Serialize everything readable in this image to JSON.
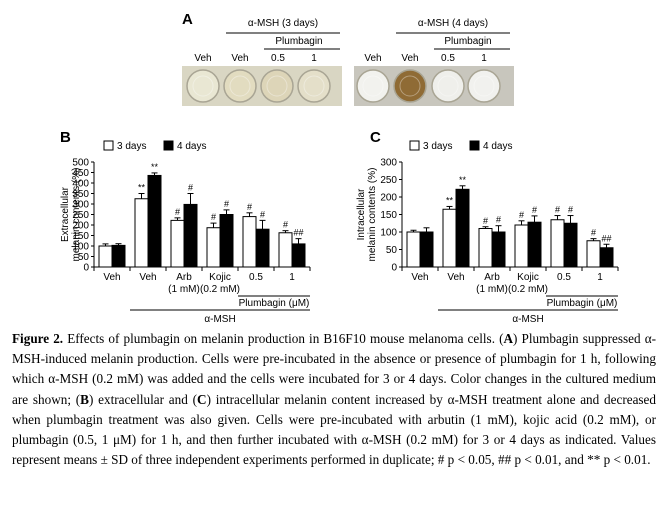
{
  "panel_a": {
    "label": "A",
    "group3_title": "α-MSH (3 days)",
    "group4_title": "α-MSH (4 days)",
    "plumbagin_label": "Plumbagin",
    "well_labels_3": [
      "Veh",
      "Veh",
      "0.5",
      "1"
    ],
    "well_labels_4": [
      "Veh",
      "Veh",
      "0.5",
      "1"
    ],
    "well_colors_3": [
      "#e9e7d3",
      "#e2dcc0",
      "#ddd5b8",
      "#e4dfc9"
    ],
    "well_colors_4": [
      "#f2f2ee",
      "#8f6b35",
      "#efefeb",
      "#f1f1ee"
    ]
  },
  "chart_data": [
    {
      "panel": "B",
      "type": "bar",
      "legend": [
        "3 days",
        "4 days"
      ],
      "legend_placement": "top",
      "ylabel": [
        "Extracellular",
        "melanin contents (%)"
      ],
      "ylim": [
        0,
        500
      ],
      "yticks": [
        0,
        50,
        100,
        150,
        200,
        250,
        300,
        350,
        400,
        450,
        500
      ],
      "categories": [
        "Veh",
        "Veh",
        "Arb",
        "Kojic",
        "0.5",
        "1"
      ],
      "sublabels": [
        "",
        "",
        "(1 mM)",
        "(0.2 mM)",
        "",
        ""
      ],
      "group_label": "Plumbagin (μM)",
      "treatment_label": "α-MSH",
      "series": [
        {
          "name": "3 days",
          "color": "#ffffff",
          "values": [
            100,
            325,
            222,
            187,
            240,
            163
          ],
          "errors": [
            10,
            25,
            12,
            22,
            18,
            10
          ],
          "marks": [
            "",
            "**",
            "#",
            "#",
            "#",
            "#"
          ]
        },
        {
          "name": "4 days",
          "color": "#000000",
          "values": [
            103,
            436,
            298,
            250,
            180,
            110
          ],
          "errors": [
            8,
            12,
            52,
            22,
            42,
            25
          ],
          "marks": [
            "",
            "**",
            "#",
            "#",
            "#",
            "##"
          ]
        }
      ]
    },
    {
      "panel": "C",
      "type": "bar",
      "legend": [
        "3 days",
        "4 days"
      ],
      "legend_placement": "top",
      "ylabel": [
        "Intracellular",
        "melanin contents (%)"
      ],
      "ylim": [
        0,
        300
      ],
      "yticks": [
        0,
        50,
        100,
        150,
        200,
        250,
        300
      ],
      "categories": [
        "Veh",
        "Veh",
        "Arb",
        "Kojic",
        "0.5",
        "1"
      ],
      "sublabels": [
        "",
        "",
        "(1 mM)",
        "(0.2 mM)",
        "",
        ""
      ],
      "group_label": "Plumbagin (μM)",
      "treatment_label": "α-MSH",
      "series": [
        {
          "name": "3 days",
          "color": "#ffffff",
          "values": [
            100,
            165,
            110,
            120,
            135,
            75
          ],
          "errors": [
            5,
            8,
            5,
            12,
            12,
            6
          ],
          "marks": [
            "",
            "**",
            "#",
            "#",
            "#",
            "#"
          ]
        },
        {
          "name": "4 days",
          "color": "#000000",
          "values": [
            100,
            222,
            100,
            128,
            125,
            55
          ],
          "errors": [
            12,
            10,
            18,
            18,
            22,
            10
          ],
          "marks": [
            "",
            "**",
            "#",
            "#",
            "#",
            "##"
          ]
        }
      ]
    }
  ],
  "caption": {
    "label": "Figure 2.",
    "text_1": " Effects of plumbagin on melanin production in B16F10 mouse melanoma cells. (",
    "a": "A",
    "text_2": ") Plumbagin suppressed α-MSH-induced melanin production. Cells were pre-incubated in the absence or presence of plumbagin for 1 h, following which α-MSH (0.2 mM) was added and the cells were incubated for 3 or 4 days. Color changes in the cultured medium are shown; (",
    "b": "B",
    "text_3": ") extracellular and (",
    "c": "C",
    "text_4": ") intracellular melanin content increased by α-MSH treatment alone and decreased when plumbagin treatment was also given. Cells were pre-incubated with arbutin (1 mM), kojic acid (0.2 mM), or plumbagin (0.5, 1 μM) for 1 h, and then further incubated with α-MSH (0.2 mM) for 3 or 4 days as indicated. Values represent means ± SD of three independent experiments performed in duplicate; # p < 0.05, ## p < 0.01, and ** p < 0.01."
  }
}
